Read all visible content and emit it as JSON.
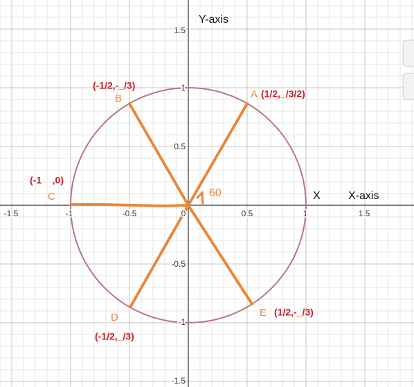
{
  "axes": {
    "x_title": "X-axis",
    "y_title": "Y-axis",
    "x_marker": "X",
    "x_ticks": [
      "-1.5",
      "-1",
      "-0.5",
      "0",
      "0.5",
      "1",
      "1.5"
    ],
    "y_ticks": [
      "1.5",
      "1",
      "0.5",
      "-0.5",
      "-1",
      "-1.5"
    ]
  },
  "angle_label": "60",
  "points": [
    {
      "name": "A",
      "coords": "(1/2,_/3/2)"
    },
    {
      "name": "B",
      "coords": "(-1/2,-_/3)"
    },
    {
      "name": "C",
      "coords": "(-1    ,0)"
    },
    {
      "name": "D",
      "coords": "(-1/2,_/3)"
    },
    {
      "name": "E",
      "coords": "(1/2,-_/3)"
    }
  ]
}
